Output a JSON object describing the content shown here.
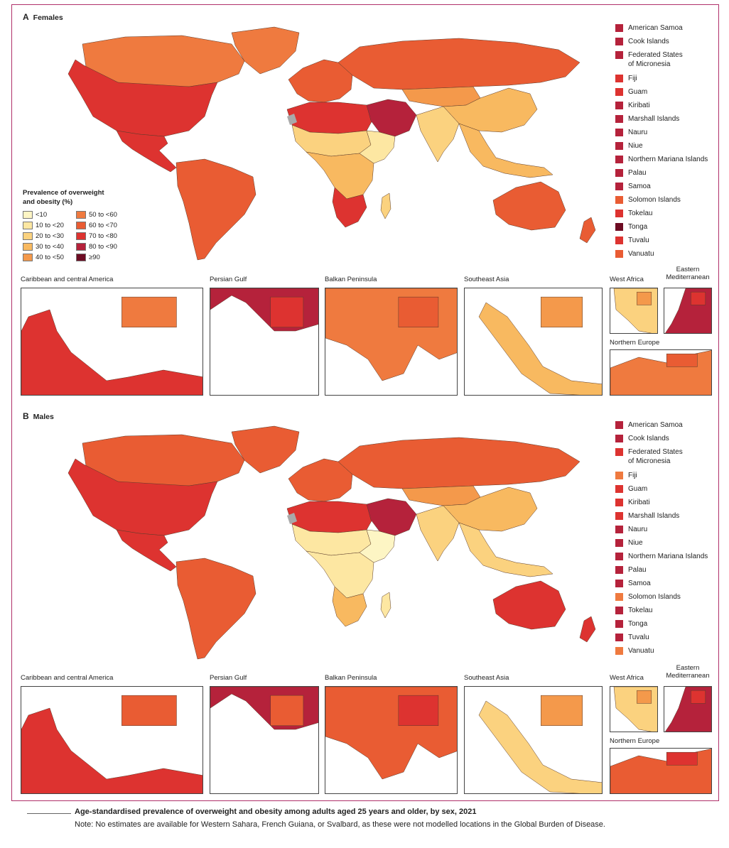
{
  "colors": {
    "lt10": "#fdf5c4",
    "10to20": "#fde7a2",
    "20to30": "#fbd27f",
    "30to40": "#f8b960",
    "40to50": "#f4994b",
    "50to60": "#ef7a3f",
    "60to70": "#e95c33",
    "70to80": "#dd3330",
    "80to90": "#b5223b",
    "ge90": "#6d0c23",
    "no_data": "#a9a9a9",
    "frame": "#b0306a"
  },
  "legend": {
    "title_line1": "Prevalence of overweight",
    "title_line2": "and obesity (%)",
    "items": [
      {
        "label": "<10",
        "color": "#fdf5c4"
      },
      {
        "label": "50 to <60",
        "color": "#ef7a3f"
      },
      {
        "label": "10 to <20",
        "color": "#fde7a2"
      },
      {
        "label": "60 to <70",
        "color": "#e95c33"
      },
      {
        "label": "20 to <30",
        "color": "#fbd27f"
      },
      {
        "label": "70 to <80",
        "color": "#dd3330"
      },
      {
        "label": "30 to <40",
        "color": "#f8b960"
      },
      {
        "label": "80 to <90",
        "color": "#b5223b"
      },
      {
        "label": "40 to <50",
        "color": "#f4994b"
      },
      {
        "label": "≥90",
        "color": "#6d0c23"
      }
    ]
  },
  "panels": {
    "females": {
      "letter": "A",
      "title": "Females",
      "regions": {
        "north_america": "#dd3330",
        "canada": "#ef7a3f",
        "greenland": "#ef7a3f",
        "central_america": "#dd3330",
        "south_america": "#e95c33",
        "europe": "#e95c33",
        "russia": "#e95c33",
        "north_africa": "#dd3330",
        "middle_east": "#b5223b",
        "sahel": "#fbd27f",
        "east_africa": "#fde7a2",
        "central_africa": "#f8b960",
        "south_africa": "#dd3330",
        "central_asia": "#f4994b",
        "china": "#f8b960",
        "india": "#fbd27f",
        "southeast_asia": "#f8b960",
        "australia": "#e95c33",
        "new_zealand": "#e95c33",
        "madagascar": "#fbd27f"
      },
      "islands": [
        {
          "name": "American Samoa",
          "color": "#b5223b"
        },
        {
          "name": "Cook Islands",
          "color": "#b5223b"
        },
        {
          "name": "Federated States",
          "name2": "of Micronesia",
          "color": "#b5223b"
        },
        {
          "name": "Fiji",
          "color": "#dd3330"
        },
        {
          "name": "Guam",
          "color": "#dd3330"
        },
        {
          "name": "Kiribati",
          "color": "#b5223b"
        },
        {
          "name": "Marshall Islands",
          "color": "#b5223b"
        },
        {
          "name": "Nauru",
          "color": "#b5223b"
        },
        {
          "name": "Niue",
          "color": "#b5223b"
        },
        {
          "name": "Northern Mariana Islands",
          "color": "#b5223b"
        },
        {
          "name": "Palau",
          "color": "#b5223b"
        },
        {
          "name": "Samoa",
          "color": "#b5223b"
        },
        {
          "name": "Solomon Islands",
          "color": "#e95c33"
        },
        {
          "name": "Tokelau",
          "color": "#dd3330"
        },
        {
          "name": "Tonga",
          "color": "#6d0c23"
        },
        {
          "name": "Tuvalu",
          "color": "#dd3330"
        },
        {
          "name": "Vanuatu",
          "color": "#e95c33"
        }
      ],
      "insets": [
        {
          "title": "Caribbean and central America",
          "c1": "#dd3330",
          "c2": "#ef7a3f"
        },
        {
          "title": "Persian Gulf",
          "c1": "#b5223b",
          "c2": "#dd3330"
        },
        {
          "title": "Balkan Peninsula",
          "c1": "#ef7a3f",
          "c2": "#e95c33"
        },
        {
          "title": "Southeast Asia",
          "c1": "#f8b960",
          "c2": "#f4994b"
        },
        {
          "title": "West Africa",
          "c1": "#fbd27f",
          "c2": "#f4994b"
        },
        {
          "title": "Eastern",
          "title2": "Mediterranean",
          "c1": "#b5223b",
          "c2": "#dd3330"
        },
        {
          "title": "Northern Europe",
          "c1": "#ef7a3f",
          "c2": "#e95c33"
        }
      ]
    },
    "males": {
      "letter": "B",
      "title": "Males",
      "regions": {
        "north_america": "#dd3330",
        "canada": "#e95c33",
        "greenland": "#e95c33",
        "central_america": "#dd3330",
        "south_america": "#e95c33",
        "europe": "#e95c33",
        "russia": "#e95c33",
        "north_africa": "#dd3330",
        "middle_east": "#b5223b",
        "sahel": "#fde7a2",
        "east_africa": "#fdf5c4",
        "central_africa": "#fde7a2",
        "south_africa": "#f8b960",
        "central_asia": "#f4994b",
        "china": "#f8b960",
        "india": "#fbd27f",
        "southeast_asia": "#fbd27f",
        "australia": "#dd3330",
        "new_zealand": "#dd3330",
        "madagascar": "#fde7a2"
      },
      "islands": [
        {
          "name": "American Samoa",
          "color": "#b5223b"
        },
        {
          "name": "Cook Islands",
          "color": "#b5223b"
        },
        {
          "name": "Federated States",
          "name2": "of Micronesia",
          "color": "#dd3330"
        },
        {
          "name": "Fiji",
          "color": "#ef7a3f"
        },
        {
          "name": "Guam",
          "color": "#dd3330"
        },
        {
          "name": "Kiribati",
          "color": "#dd3330"
        },
        {
          "name": "Marshall Islands",
          "color": "#dd3330"
        },
        {
          "name": "Nauru",
          "color": "#b5223b"
        },
        {
          "name": "Niue",
          "color": "#b5223b"
        },
        {
          "name": "Northern Mariana Islands",
          "color": "#b5223b"
        },
        {
          "name": "Palau",
          "color": "#b5223b"
        },
        {
          "name": "Samoa",
          "color": "#b5223b"
        },
        {
          "name": "Solomon Islands",
          "color": "#ef7a3f"
        },
        {
          "name": "Tokelau",
          "color": "#b5223b"
        },
        {
          "name": "Tonga",
          "color": "#b5223b"
        },
        {
          "name": "Tuvalu",
          "color": "#b5223b"
        },
        {
          "name": "Vanuatu",
          "color": "#ef7a3f"
        }
      ],
      "insets": [
        {
          "title": "Caribbean and central America",
          "c1": "#dd3330",
          "c2": "#e95c33"
        },
        {
          "title": "Persian Gulf",
          "c1": "#b5223b",
          "c2": "#e95c33"
        },
        {
          "title": "Balkan Peninsula",
          "c1": "#e95c33",
          "c2": "#dd3330"
        },
        {
          "title": "Southeast Asia",
          "c1": "#fbd27f",
          "c2": "#f4994b"
        },
        {
          "title": "West Africa",
          "c1": "#fbd27f",
          "c2": "#f4994b"
        },
        {
          "title": "Eastern",
          "title2": "Mediterranean",
          "c1": "#b5223b",
          "c2": "#dd3330"
        },
        {
          "title": "Northern Europe",
          "c1": "#e95c33",
          "c2": "#dd3330"
        }
      ]
    }
  },
  "caption": "Age-standardised prevalence of overweight and obesity among adults aged 25 years and older, by sex, 2021",
  "note": "Note: No estimates are available for Western Sahara, French Guiana, or Svalbard, as these were not modelled locations in the Global Burden of Disease."
}
